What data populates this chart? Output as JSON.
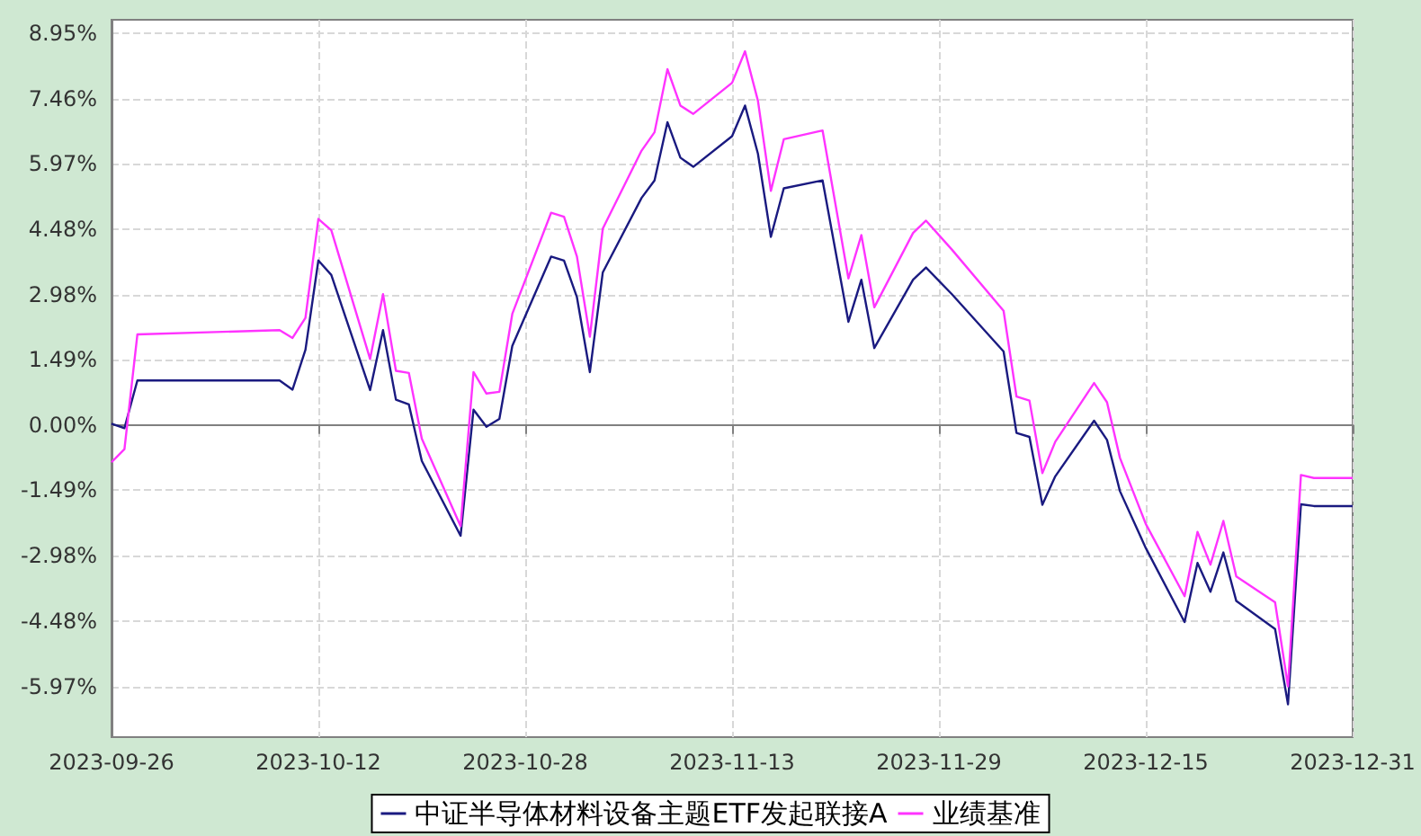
{
  "chart_data": {
    "type": "line",
    "x": [
      "2023-09-26",
      "2023-09-27",
      "2023-09-28",
      "2023-10-09",
      "2023-10-10",
      "2023-10-11",
      "2023-10-12",
      "2023-10-13",
      "2023-10-16",
      "2023-10-17",
      "2023-10-18",
      "2023-10-19",
      "2023-10-20",
      "2023-10-23",
      "2023-10-24",
      "2023-10-25",
      "2023-10-26",
      "2023-10-27",
      "2023-10-30",
      "2023-10-31",
      "2023-11-01",
      "2023-11-02",
      "2023-11-03",
      "2023-11-06",
      "2023-11-07",
      "2023-11-08",
      "2023-11-09",
      "2023-11-10",
      "2023-11-13",
      "2023-11-14",
      "2023-11-15",
      "2023-11-16",
      "2023-11-17",
      "2023-11-20",
      "2023-11-22",
      "2023-11-23",
      "2023-11-24",
      "2023-11-27",
      "2023-11-28",
      "2023-11-30",
      "2023-12-04",
      "2023-12-05",
      "2023-12-06",
      "2023-12-07",
      "2023-12-08",
      "2023-12-11",
      "2023-12-12",
      "2023-12-13",
      "2023-12-15",
      "2023-12-18",
      "2023-12-19",
      "2023-12-20",
      "2023-12-21",
      "2023-12-22",
      "2023-12-25",
      "2023-12-26",
      "2023-12-27",
      "2023-12-28",
      "2023-12-29",
      "2023-12-31"
    ],
    "series": [
      {
        "name": "中证半导体材料设备主题ETF发起联接A",
        "color": "#1a1a80",
        "values": [
          0.03,
          -0.07,
          1.02,
          1.02,
          0.81,
          1.72,
          3.76,
          3.43,
          0.8,
          2.17,
          0.58,
          0.47,
          -0.82,
          -2.53,
          0.35,
          -0.04,
          0.14,
          1.81,
          3.85,
          3.76,
          2.92,
          1.21,
          3.49,
          5.19,
          5.59,
          6.92,
          6.11,
          5.9,
          6.6,
          7.3,
          6.2,
          4.3,
          5.41,
          5.59,
          2.36,
          3.32,
          1.76,
          3.32,
          3.6,
          2.99,
          1.68,
          -0.18,
          -0.27,
          -1.82,
          -1.17,
          0.1,
          -0.34,
          -1.51,
          -2.81,
          -4.5,
          -3.15,
          -3.81,
          -2.91,
          -4.02,
          -4.66,
          -6.38,
          -1.81,
          -1.85,
          -1.85,
          -1.85
        ]
      },
      {
        "name": "业绩基准",
        "color": "#ff33ff",
        "values": [
          -0.85,
          -0.55,
          2.07,
          2.17,
          1.99,
          2.45,
          4.71,
          4.45,
          1.51,
          2.99,
          1.24,
          1.19,
          -0.31,
          -2.31,
          1.21,
          0.72,
          0.76,
          2.54,
          4.85,
          4.76,
          3.85,
          2.02,
          4.49,
          6.27,
          6.69,
          8.13,
          7.3,
          7.11,
          7.82,
          8.54,
          7.41,
          5.35,
          6.53,
          6.73,
          3.35,
          4.34,
          2.69,
          4.39,
          4.67,
          4.01,
          2.61,
          0.65,
          0.56,
          -1.1,
          -0.38,
          0.96,
          0.52,
          -0.75,
          -2.26,
          -3.91,
          -2.44,
          -3.19,
          -2.19,
          -3.46,
          -4.05,
          -5.97,
          -1.14,
          -1.21,
          -1.21,
          -1.21
        ]
      }
    ],
    "xlim": [
      "2023-09-26",
      "2023-12-31"
    ],
    "xticks": [
      "2023-09-26",
      "2023-10-12",
      "2023-10-28",
      "2023-11-13",
      "2023-11-29",
      "2023-12-15",
      "2023-12-31"
    ],
    "ylim": [
      -7.13,
      9.26
    ],
    "yticks": [
      {
        "value": 8.95,
        "label": "8.95%"
      },
      {
        "value": 7.46,
        "label": "7.46%"
      },
      {
        "value": 5.97,
        "label": "5.97%"
      },
      {
        "value": 4.48,
        "label": "4.48%"
      },
      {
        "value": 2.98,
        "label": "2.98%"
      },
      {
        "value": 1.49,
        "label": "1.49%"
      },
      {
        "value": 0,
        "label": "0.00%"
      },
      {
        "value": -1.49,
        "label": "-1.49%"
      },
      {
        "value": -2.98,
        "label": "-2.98%"
      },
      {
        "value": -4.48,
        "label": "-4.48%"
      },
      {
        "value": -5.97,
        "label": "-5.97%"
      }
    ],
    "grid": true,
    "legend": "bottom",
    "marker": "none",
    "line_style": "solid"
  }
}
